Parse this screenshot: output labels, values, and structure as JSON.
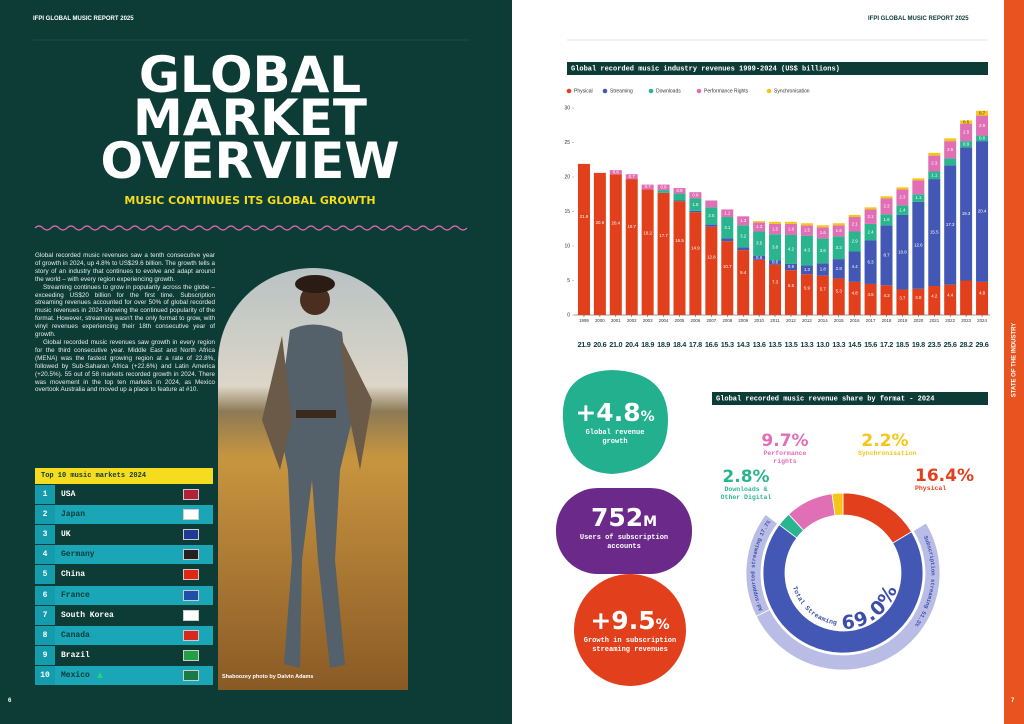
{
  "header": {
    "left": "IFPI GLOBAL MUSIC REPORT 2025",
    "right": "IFPI GLOBAL MUSIC REPORT 2025"
  },
  "title": "GLOBAL MARKET OVERVIEW",
  "subtitle": "MUSIC CONTINUES ITS GLOBAL GROWTH",
  "paragraphs": [
    "Global recorded music revenues saw a tenth consecutive year of growth in 2024, up 4.8% to US$29.6 billion. The growth tells a story of an industry that continues to evolve and adapt around the world – with every region experiencing growth.",
    "Streaming continues to grow in popularity across the globe – exceeding US$20 billion for the first time. Subscription streaming revenues accounted for over 50% of global recorded music revenues in 2024 showing the continued popularity of the format. However, streaming wasn't the only format to grow, with vinyl revenues experiencing their 18th consecutive year of growth.",
    "Global recorded music revenues saw growth in every region for the third consecutive year. Middle East and North Africa (MENA) was the fastest growing region at a rate of 22.8%, followed by Sub-Saharan Africa (+22.6%) and Latin America (+20.5%). 55 out of 58 markets recorded growth in 2024. There was movement in the top ten markets in 2024, as Mexico overtook Australia and moved up a place to feature at #10."
  ],
  "top_markets": {
    "title": "Top 10 music markets 2024",
    "rows": [
      {
        "rank": 1,
        "country": "USA"
      },
      {
        "rank": 2,
        "country": "Japan"
      },
      {
        "rank": 3,
        "country": "UK"
      },
      {
        "rank": 4,
        "country": "Germany"
      },
      {
        "rank": 5,
        "country": "China"
      },
      {
        "rank": 6,
        "country": "France"
      },
      {
        "rank": 7,
        "country": "South Korea"
      },
      {
        "rank": 8,
        "country": "Canada"
      },
      {
        "rank": 9,
        "country": "Brazil"
      },
      {
        "rank": 10,
        "country": "Mexico"
      }
    ]
  },
  "photo_credit": "Shaboozey photo by Dalvin Adams",
  "stats": [
    {
      "value": "+4.8",
      "unit": "%",
      "label": "Global revenue growth"
    },
    {
      "value": "752",
      "unit": "M",
      "label": "Users of subscription accounts"
    },
    {
      "value": "+9.5",
      "unit": "%",
      "label": "Growth in subscription streaming revenues"
    }
  ],
  "side_label": "STATE OF THE INDUSTRY",
  "page_numbers": {
    "left": "6",
    "right": "7"
  },
  "chart_data": [
    {
      "type": "bar",
      "stacked": true,
      "title": "Global recorded music industry revenues 1999-2024 (US$ billions)",
      "categories": [
        "1999",
        "2000",
        "2001",
        "2002",
        "2003",
        "2004",
        "2005",
        "2006",
        "2007",
        "2008",
        "2009",
        "2010",
        "2011",
        "2012",
        "2013",
        "2014",
        "2015",
        "2016",
        "2017",
        "2018",
        "2019",
        "2020",
        "2021",
        "2022",
        "2023",
        "2024"
      ],
      "series": [
        {
          "name": "Physical",
          "color": "#e2401c",
          "values": [
            21.9,
            20.6,
            20.4,
            19.7,
            18.2,
            17.7,
            16.5,
            14.9,
            12.8,
            10.7,
            9.4,
            8.0,
            7.3,
            6.5,
            5.9,
            5.7,
            5.3,
            4.8,
            4.5,
            4.3,
            3.7,
            3.8,
            4.2,
            4.4,
            5.0,
            4.8
          ]
        },
        {
          "name": "Streaming",
          "color": "#4358b5",
          "values": [
            0,
            0,
            0,
            0,
            0,
            0,
            0.1,
            0.2,
            0.3,
            0.4,
            0.4,
            0.6,
            0.6,
            0.9,
            1.3,
            1.8,
            2.8,
            4.4,
            6.3,
            8.7,
            10.8,
            12.6,
            15.5,
            17.3,
            19.3,
            20.4
          ]
        },
        {
          "name": "Downloads",
          "color": "#2bb58f",
          "values": [
            0,
            0,
            0,
            0,
            0,
            0.4,
            1.0,
            1.8,
            2.5,
            3.1,
            3.2,
            3.5,
            3.8,
            4.2,
            4.3,
            3.6,
            3.3,
            2.9,
            2.4,
            1.6,
            1.4,
            1.1,
            1.1,
            1.0,
            0.9,
            0.8
          ]
        },
        {
          "name": "Performance Rights",
          "color": "#e16fb6",
          "values": [
            0,
            0,
            0.6,
            0.7,
            0.7,
            0.8,
            0.8,
            0.9,
            1.0,
            1.1,
            1.3,
            1.3,
            1.5,
            1.6,
            1.5,
            1.6,
            1.6,
            2.1,
            2.1,
            2.3,
            2.3,
            2.0,
            2.3,
            2.5,
            2.5,
            2.9
          ]
        },
        {
          "name": "Synchronisation",
          "color": "#f5c518",
          "values": [
            0,
            0,
            0,
            0,
            0,
            0,
            0,
            0,
            0,
            0,
            0,
            0.2,
            0.3,
            0.3,
            0.3,
            0.3,
            0.3,
            0.3,
            0.3,
            0.3,
            0.3,
            0.3,
            0.4,
            0.4,
            0.5,
            0.7
          ]
        }
      ],
      "totals": [
        21.9,
        20.6,
        21.0,
        20.4,
        18.9,
        18.9,
        18.4,
        17.8,
        16.6,
        15.3,
        14.3,
        13.6,
        13.5,
        13.5,
        13.3,
        13.0,
        13.3,
        14.5,
        15.6,
        17.2,
        18.5,
        19.8,
        23.5,
        25.6,
        28.2,
        29.6
      ],
      "total_labels": [
        "21.9",
        "20.6",
        "21.0",
        "20.4",
        "18.9",
        "18.9",
        "18.4",
        "17.8",
        "16.6",
        "15.3",
        "14.3",
        "13.6",
        "13.5",
        "13.5",
        "13.3",
        "13.0",
        "13.3",
        "14.5",
        "15.6",
        "17.2",
        "18.5",
        "19.8",
        "23.5",
        "25.6",
        "28.2",
        "29.6"
      ],
      "ylim": [
        0,
        30
      ],
      "yticks": [
        0,
        5,
        10,
        15,
        20,
        25,
        30
      ]
    },
    {
      "type": "pie",
      "donut": true,
      "title": "Global recorded music revenue share by format - 2024",
      "categories": [
        "Physical",
        "Total Streaming",
        "Downloads & Other Digital",
        "Performance rights",
        "Synchronisation"
      ],
      "values": [
        16.4,
        69.0,
        2.8,
        9.7,
        2.2
      ],
      "value_labels": [
        "16.4%",
        "69.0%",
        "2.8%",
        "9.7%",
        "2.2%"
      ],
      "colors": [
        "#e2401c",
        "#4358b5",
        "#2bb58f",
        "#e16fb6",
        "#f5c518"
      ],
      "streaming_split": {
        "categories": [
          "Subscription streaming",
          "Ad-supported streaming"
        ],
        "values": [
          51.3,
          17.7
        ],
        "value_labels": [
          "51.3%",
          "17.7%"
        ],
        "color": "#b9bde6"
      }
    }
  ]
}
